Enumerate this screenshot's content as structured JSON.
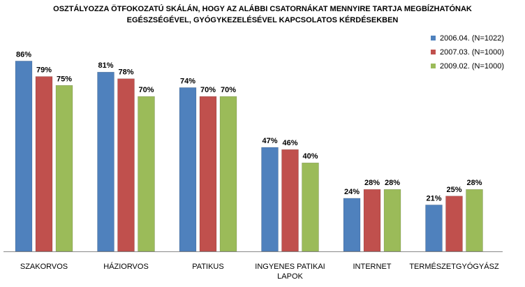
{
  "chart_data": {
    "type": "bar",
    "title_lines": [
      "OSZTÁLYOZZA ÖTFOKOZATÚ  SKÁLÁN, HOGY AZ ALÁBBI CSATORNÁKAT MENNYIRE TARTJA MEGBÍZHATÓNAK",
      "EGÉSZSÉGÉVEL,  GYÓGYKEZELÉSÉVEL  KAPCSOLATOS  KÉRDÉSEKBEN"
    ],
    "categories": [
      [
        "SZAKORVOS"
      ],
      [
        "HÁZIORVOS"
      ],
      [
        "PATIKUS"
      ],
      [
        "INGYENES PATIKAI",
        "LAPOK"
      ],
      [
        "INTERNET"
      ],
      [
        "TERMÉSZETGYÓGYÁSZ"
      ]
    ],
    "series": [
      {
        "name": "2006.04. (N=1022)",
        "color": "#4F81BD",
        "values": [
          86,
          81,
          74,
          47,
          24,
          21
        ]
      },
      {
        "name": "2007.03.  (N=1000)",
        "color": "#C0504D",
        "values": [
          79,
          78,
          70,
          46,
          28,
          25
        ]
      },
      {
        "name": "2009.02. (N=1000)",
        "color": "#9BBB59",
        "values": [
          75,
          70,
          70,
          40,
          28,
          28
        ]
      }
    ],
    "value_suffix": "%",
    "ylim": [
      0,
      100
    ],
    "grid": false,
    "legend_position": "top-right"
  }
}
